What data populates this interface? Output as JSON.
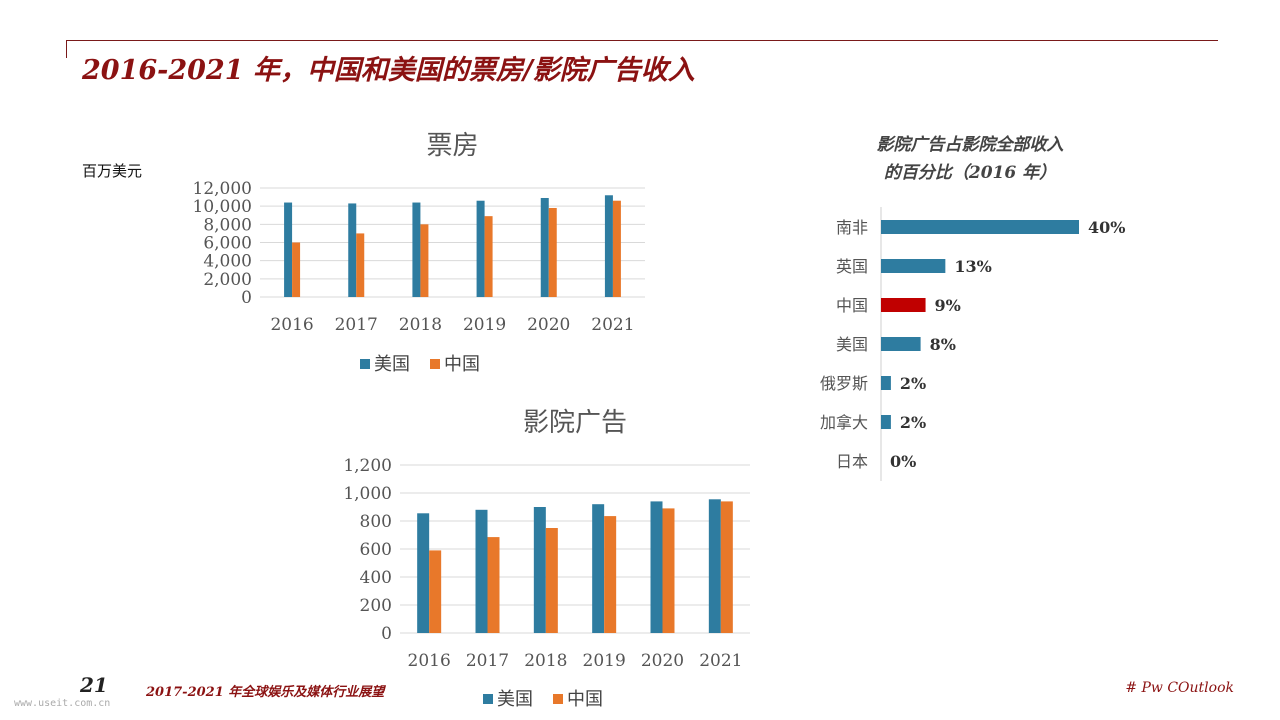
{
  "slide": {
    "title": "2016-2021 年，中国和美国的票房/影院广告收入",
    "unit_label": "百万美元",
    "page_number": "21",
    "report_name": "2017-2021 年全球娱乐及媒体行业展望",
    "hashtag": "# Pw COutlook",
    "watermark": "www.useit.com.cn"
  },
  "colors": {
    "usa": "#2e7ca0",
    "china": "#e8782a",
    "highlight": "#c00000",
    "accent": "#8b1212"
  },
  "chart_data": [
    {
      "type": "bar",
      "title": "票房",
      "categories": [
        "2016",
        "2017",
        "2018",
        "2019",
        "2020",
        "2021"
      ],
      "series": [
        {
          "name": "美国",
          "values": [
            10400,
            10300,
            10400,
            10600,
            10900,
            11200
          ]
        },
        {
          "name": "中国",
          "values": [
            6000,
            7000,
            8000,
            8900,
            9800,
            10600
          ]
        }
      ],
      "ylim": [
        0,
        12000
      ],
      "yticks": [
        0,
        2000,
        4000,
        6000,
        8000,
        10000,
        12000
      ],
      "ytick_labels": [
        "0",
        "2,000",
        "4,000",
        "6,000",
        "8,000",
        "10,000",
        "12,000"
      ],
      "grid": true,
      "legend": "bottom"
    },
    {
      "type": "bar",
      "title": "影院广告",
      "categories": [
        "2016",
        "2017",
        "2018",
        "2019",
        "2020",
        "2021"
      ],
      "series": [
        {
          "name": "美国",
          "values": [
            855,
            880,
            900,
            920,
            940,
            955
          ]
        },
        {
          "name": "中国",
          "values": [
            590,
            685,
            750,
            835,
            890,
            940
          ]
        }
      ],
      "ylim": [
        0,
        1200
      ],
      "yticks": [
        0,
        200,
        400,
        600,
        800,
        1000,
        1200
      ],
      "ytick_labels": [
        "0",
        "200",
        "400",
        "600",
        "800",
        "1,000",
        "1,200"
      ],
      "grid": true,
      "legend": "bottom"
    },
    {
      "type": "bar",
      "orientation": "horizontal",
      "title": "影院广告占影院全部收入的百分比（2016 年）",
      "title_lines": [
        "影院广告占影院全部收入",
        "的百分比（2016 年）"
      ],
      "categories": [
        "南非",
        "英国",
        "中国",
        "美国",
        "俄罗斯",
        "加拿大",
        "日本"
      ],
      "values": [
        40,
        13,
        9,
        8,
        2,
        2,
        0
      ],
      "value_labels": [
        "40%",
        "13%",
        "9%",
        "8%",
        "2%",
        "2%",
        "0%"
      ],
      "highlight": "中国",
      "xlim": [
        0,
        40
      ]
    }
  ]
}
